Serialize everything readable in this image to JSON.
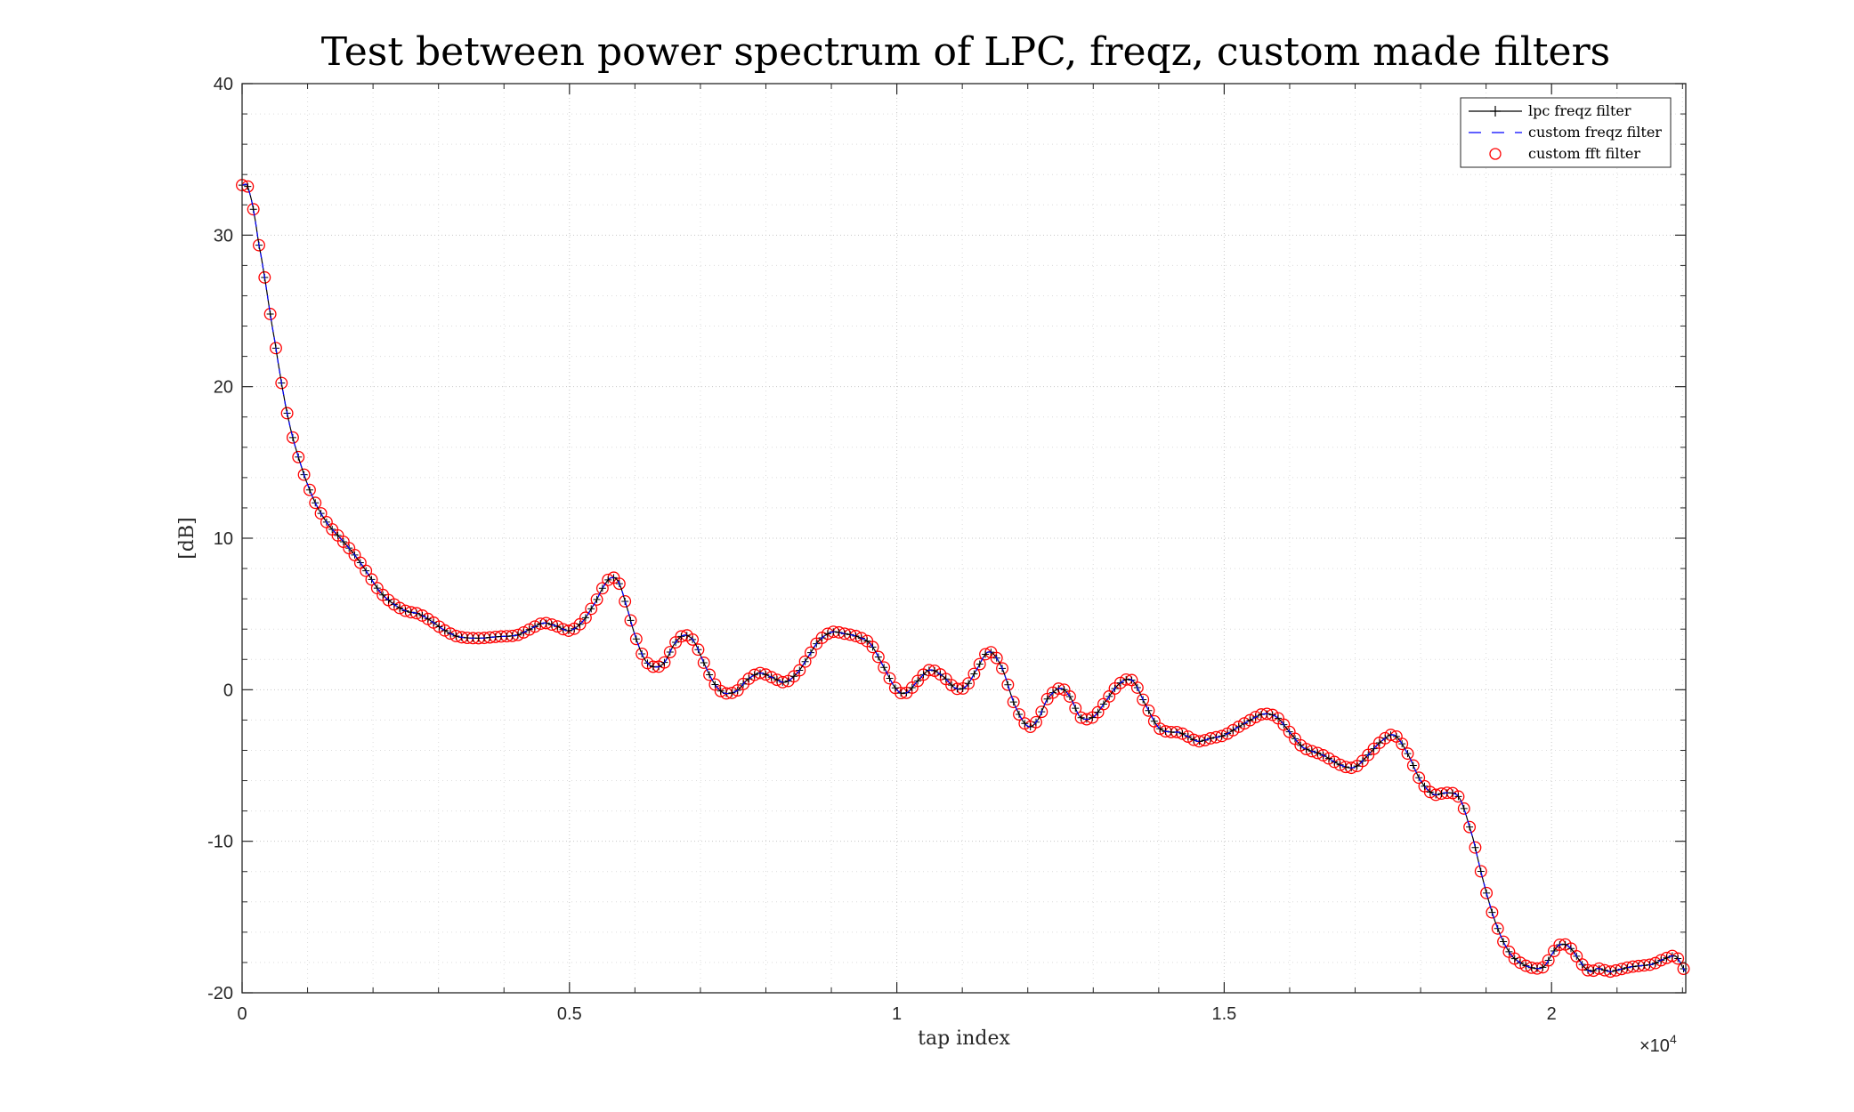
{
  "chart_data": {
    "type": "line",
    "title": "Test between power spectrum of LPC, freqz, custom made filters",
    "xlabel": "tap index",
    "ylabel": "[dB]",
    "x_exponent_label": "×10",
    "x_exponent_power": "4",
    "xlim": [
      0,
      22050
    ],
    "ylim": [
      -20,
      40
    ],
    "x_ticks": [
      0,
      5000,
      10000,
      15000,
      20000
    ],
    "x_tick_labels": [
      "0",
      "0.5",
      "1",
      "1.5",
      "2"
    ],
    "y_ticks": [
      -20,
      -10,
      0,
      10,
      20,
      30,
      40
    ],
    "y_tick_labels": [
      "-20",
      "-10",
      "0",
      "10",
      "20",
      "30",
      "40"
    ],
    "grid": true,
    "minor_grid": true,
    "legend_position": "top-right",
    "series": [
      {
        "name": "lpc freqz filter",
        "color": "#000000",
        "style": "solid-plus"
      },
      {
        "name": "custom freqz filter",
        "color": "#0000ff",
        "style": "dashed"
      },
      {
        "name": "custom fft filter",
        "color": "#ff0000",
        "style": "circle"
      }
    ],
    "curve_points": {
      "x": [
        0,
        100,
        250,
        500,
        700,
        900,
        1100,
        1300,
        1500,
        1700,
        1900,
        2100,
        2300,
        2500,
        2700,
        2900,
        3100,
        3300,
        3600,
        3900,
        4200,
        4400,
        4600,
        4800,
        5000,
        5200,
        5400,
        5550,
        5650,
        5750,
        5850,
        6000,
        6150,
        6300,
        6450,
        6600,
        6750,
        6900,
        7050,
        7200,
        7350,
        7550,
        7700,
        7900,
        8100,
        8300,
        8500,
        8650,
        8800,
        9000,
        9200,
        9400,
        9600,
        9800,
        10000,
        10150,
        10300,
        10500,
        10700,
        10900,
        11050,
        11200,
        11400,
        11600,
        11800,
        12000,
        12150,
        12300,
        12500,
        12650,
        12800,
        13000,
        13200,
        13400,
        13600,
        13800,
        14000,
        14200,
        14300,
        14400,
        14600,
        14800,
        15000,
        15200,
        15400,
        15600,
        15800,
        16000,
        16200,
        16500,
        16800,
        17000,
        17200,
        17400,
        17600,
        17800,
        18000,
        18200,
        18400,
        18600,
        18800,
        18950,
        19100,
        19250,
        19400,
        19600,
        19800,
        19900,
        20000,
        20100,
        20200,
        20300,
        20400,
        20500,
        20600,
        20700,
        20800,
        20900,
        21000,
        21200,
        21400,
        21550,
        21700,
        21900,
        22050
      ],
      "y": [
        33.3,
        33.0,
        29.5,
        23.0,
        18.0,
        14.8,
        12.5,
        11.0,
        10.0,
        9.0,
        7.8,
        6.5,
        5.7,
        5.2,
        5.0,
        4.5,
        3.9,
        3.5,
        3.4,
        3.5,
        3.6,
        4.0,
        4.4,
        4.2,
        3.9,
        4.5,
        5.8,
        7.0,
        7.4,
        7.1,
        5.8,
        3.6,
        2.0,
        1.5,
        1.8,
        3.0,
        3.6,
        3.2,
        1.8,
        0.5,
        -0.2,
        -0.1,
        0.6,
        1.1,
        0.8,
        0.5,
        1.2,
        2.2,
        3.2,
        3.8,
        3.7,
        3.5,
        3.0,
        1.5,
        0.0,
        -0.2,
        0.5,
        1.3,
        0.9,
        0.1,
        0.2,
        1.2,
        2.5,
        1.5,
        -1.0,
        -2.4,
        -2.0,
        -0.6,
        0.1,
        -0.5,
        -1.8,
        -1.8,
        -0.7,
        0.4,
        0.6,
        -1.0,
        -2.5,
        -2.8,
        -2.8,
        -3.0,
        -3.4,
        -3.2,
        -3.0,
        -2.5,
        -2.0,
        -1.6,
        -1.8,
        -2.8,
        -3.8,
        -4.3,
        -5.0,
        -5.1,
        -4.3,
        -3.4,
        -3.0,
        -4.2,
        -6.0,
        -6.9,
        -6.8,
        -7.2,
        -9.8,
        -12.5,
        -14.8,
        -16.5,
        -17.6,
        -18.2,
        -18.4,
        -18.2,
        -17.5,
        -16.9,
        -16.8,
        -17.1,
        -17.7,
        -18.3,
        -18.6,
        -18.4,
        -18.5,
        -18.6,
        -18.5,
        -18.3,
        -18.2,
        -18.1,
        -17.8,
        -17.6,
        -18.6
      ],
      "note_y_follow": "y values follow x in order"
    }
  }
}
